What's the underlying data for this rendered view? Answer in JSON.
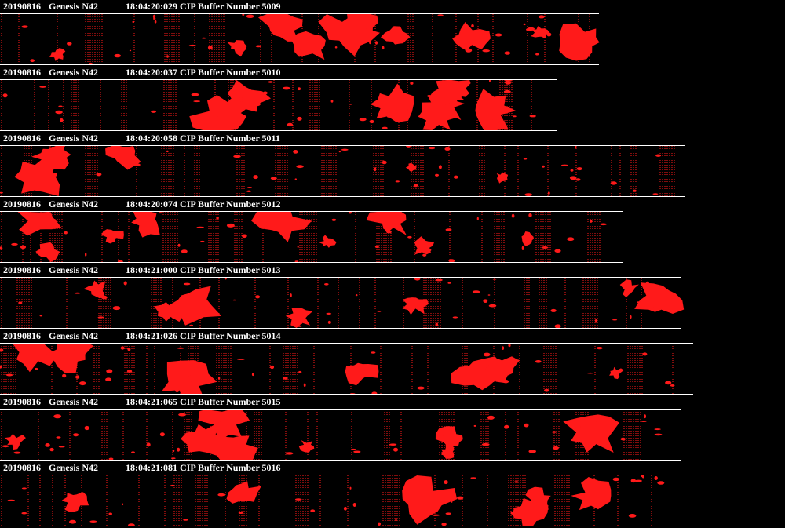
{
  "colors": {
    "background": "#000000",
    "text": "#ffffff",
    "particle": "#ff1a1a"
  },
  "buffers": [
    {
      "date": "20190816",
      "probe": "Genesis N42",
      "time": "18:04:20:029",
      "title": "CIP Buffer Number 5009"
    },
    {
      "date": "20190816",
      "probe": "Genesis N42",
      "time": "18:04:20:037",
      "title": "CIP Buffer Number 5010"
    },
    {
      "date": "20190816",
      "probe": "Genesis N42",
      "time": "18:04:20:058",
      "title": "CIP Buffer Number 5011"
    },
    {
      "date": "20190816",
      "probe": "Genesis N42",
      "time": "18:04:20:074",
      "title": "CIP Buffer Number 5012"
    },
    {
      "date": "20190816",
      "probe": "Genesis N42",
      "time": "18:04:21:000",
      "title": "CIP Buffer Number 5013"
    },
    {
      "date": "20190816",
      "probe": "Genesis N42",
      "time": "18:04:21:026",
      "title": "CIP Buffer Number 5014"
    },
    {
      "date": "20190816",
      "probe": "Genesis N42",
      "time": "18:04:21:065",
      "title": "CIP Buffer Number 5015"
    },
    {
      "date": "20190816",
      "probe": "Genesis N42",
      "time": "18:04:21:081",
      "title": "CIP Buffer Number 5016"
    }
  ]
}
